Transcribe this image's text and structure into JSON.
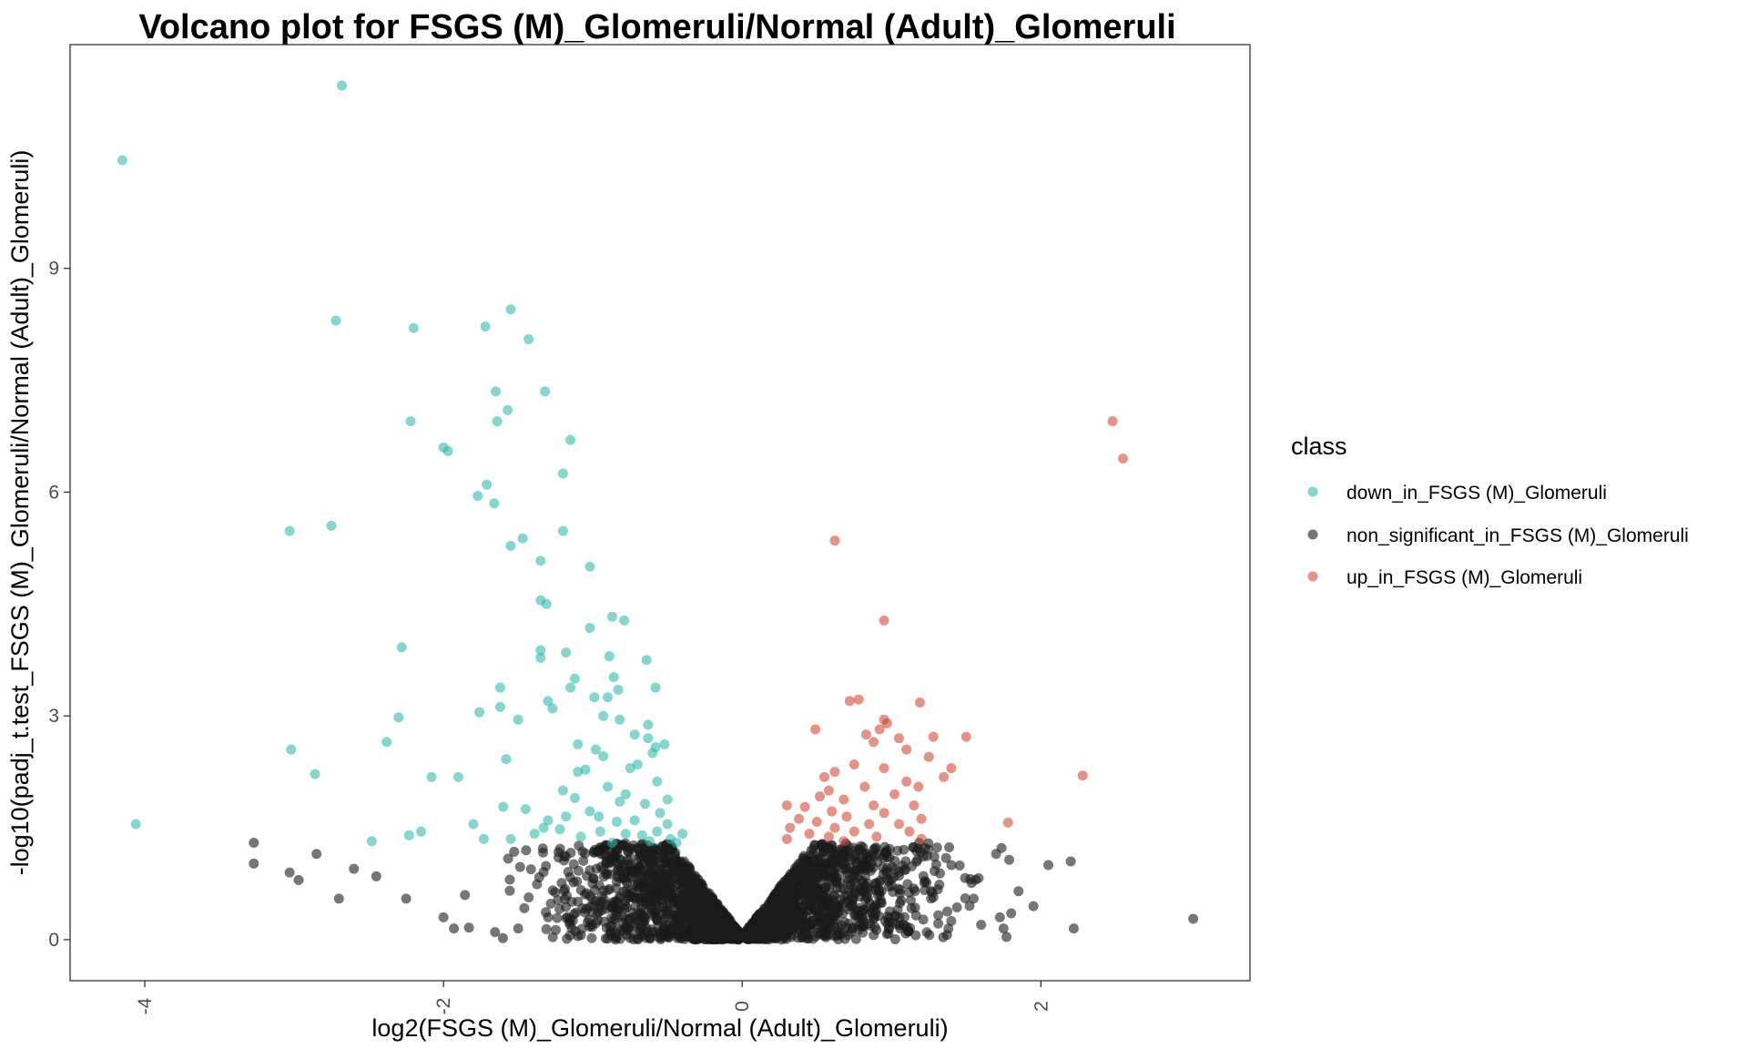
{
  "chart_data": {
    "type": "scatter",
    "title": "Volcano plot for FSGS (M)_Glomeruli/Normal (Adult)_Glomeruli",
    "xlabel": "log2(FSGS (M)_Glomeruli/Normal (Adult)_Glomeruli)",
    "ylabel": "-log10(padj_t.test_FSGS (M)_Glomeruli/Normal (Adult)_Glomeruli)",
    "xlim": [
      -4.5,
      3.4
    ],
    "ylim": [
      -0.55,
      12.0
    ],
    "x_ticks": [
      -4,
      -2,
      0,
      2
    ],
    "x_tick_labels": [
      "-4",
      "-2",
      "0",
      "2"
    ],
    "y_ticks": [
      0,
      3,
      6,
      9
    ],
    "y_tick_labels": [
      "0",
      "3",
      "6",
      "9"
    ],
    "grid": false,
    "legend": {
      "title": "class",
      "position": "right"
    },
    "series": [
      {
        "name": "down_in_FSGS (M)_Glomeruli",
        "color": "#1fb5a5",
        "points": [
          [
            -4.15,
            10.45
          ],
          [
            -2.68,
            11.45
          ],
          [
            -2.72,
            8.3
          ],
          [
            -2.2,
            8.2
          ],
          [
            -1.72,
            8.22
          ],
          [
            -1.55,
            8.45
          ],
          [
            -1.43,
            8.05
          ],
          [
            -1.65,
            7.35
          ],
          [
            -1.32,
            7.35
          ],
          [
            -1.57,
            7.1
          ],
          [
            -2.22,
            6.95
          ],
          [
            -1.64,
            6.95
          ],
          [
            -1.15,
            6.7
          ],
          [
            -2.0,
            6.6
          ],
          [
            -1.97,
            6.55
          ],
          [
            -1.2,
            6.25
          ],
          [
            -1.71,
            6.1
          ],
          [
            -1.77,
            5.95
          ],
          [
            -1.66,
            5.85
          ],
          [
            -3.03,
            5.48
          ],
          [
            -2.75,
            5.55
          ],
          [
            -1.2,
            5.48
          ],
          [
            -1.47,
            5.38
          ],
          [
            -1.55,
            5.28
          ],
          [
            -1.35,
            5.08
          ],
          [
            -1.02,
            5.0
          ],
          [
            -1.35,
            4.55
          ],
          [
            -1.31,
            4.5
          ],
          [
            -0.87,
            4.33
          ],
          [
            -0.79,
            4.28
          ],
          [
            -1.02,
            4.18
          ],
          [
            -2.28,
            3.92
          ],
          [
            -1.35,
            3.88
          ],
          [
            -1.35,
            3.78
          ],
          [
            -1.18,
            3.85
          ],
          [
            -0.89,
            3.8
          ],
          [
            -0.64,
            3.75
          ],
          [
            -1.12,
            3.5
          ],
          [
            -0.86,
            3.52
          ],
          [
            -1.15,
            3.38
          ],
          [
            -1.62,
            3.38
          ],
          [
            -0.83,
            3.35
          ],
          [
            -0.58,
            3.38
          ],
          [
            -0.99,
            3.25
          ],
          [
            -0.9,
            3.25
          ],
          [
            -1.3,
            3.2
          ],
          [
            -1.76,
            3.05
          ],
          [
            -1.62,
            3.12
          ],
          [
            -1.27,
            3.1
          ],
          [
            -2.3,
            2.98
          ],
          [
            -1.5,
            2.95
          ],
          [
            -0.82,
            2.95
          ],
          [
            -0.93,
            3.0
          ],
          [
            -0.63,
            2.88
          ],
          [
            -0.72,
            2.75
          ],
          [
            -0.63,
            2.7
          ],
          [
            -3.02,
            2.55
          ],
          [
            -2.38,
            2.65
          ],
          [
            -1.1,
            2.62
          ],
          [
            -0.98,
            2.55
          ],
          [
            -0.58,
            2.58
          ],
          [
            -0.52,
            2.62
          ],
          [
            -0.6,
            2.5
          ],
          [
            -0.93,
            2.46
          ],
          [
            -1.58,
            2.42
          ],
          [
            -2.86,
            2.22
          ],
          [
            -2.08,
            2.18
          ],
          [
            -1.9,
            2.18
          ],
          [
            -0.7,
            2.35
          ],
          [
            -0.75,
            2.3
          ],
          [
            -1.05,
            2.28
          ],
          [
            -1.1,
            2.25
          ],
          [
            -0.57,
            2.12
          ],
          [
            -1.2,
            2.0
          ],
          [
            -1.12,
            1.9
          ],
          [
            -0.82,
            1.85
          ],
          [
            -0.65,
            1.82
          ],
          [
            -0.5,
            1.88
          ],
          [
            -1.45,
            1.75
          ],
          [
            -1.6,
            1.78
          ],
          [
            -0.96,
            1.65
          ],
          [
            -0.72,
            1.6
          ],
          [
            -1.8,
            1.55
          ],
          [
            -1.3,
            1.6
          ],
          [
            -0.5,
            1.55
          ],
          [
            -1.22,
            1.48
          ],
          [
            -0.57,
            1.45
          ],
          [
            -0.4,
            1.42
          ],
          [
            -4.06,
            1.55
          ],
          [
            -2.15,
            1.45
          ],
          [
            -2.23,
            1.4
          ],
          [
            -1.73,
            1.35
          ],
          [
            -1.55,
            1.35
          ],
          [
            -1.39,
            1.42
          ],
          [
            -0.95,
            1.45
          ],
          [
            -0.78,
            1.42
          ],
          [
            -0.67,
            1.4
          ],
          [
            -2.48,
            1.32
          ],
          [
            -1.08,
            1.38
          ],
          [
            -0.62,
            1.32
          ],
          [
            -0.87,
            1.3
          ],
          [
            -0.48,
            1.35
          ],
          [
            -0.44,
            1.3
          ],
          [
            -1.33,
            1.5
          ],
          [
            -1.02,
            1.72
          ],
          [
            -0.84,
            1.58
          ],
          [
            -0.9,
            2.05
          ],
          [
            -1.18,
            1.65
          ],
          [
            -0.55,
            1.7
          ],
          [
            -0.78,
            1.95
          ]
        ]
      },
      {
        "name": "non_significant_in_FSGS (M)_Glomeruli",
        "color": "#1a1a1a",
        "points": []
      },
      {
        "name": "up_in_FSGS (M)_Glomeruli",
        "color": "#cf3a24",
        "points": [
          [
            2.48,
            6.95
          ],
          [
            2.55,
            6.45
          ],
          [
            0.62,
            5.35
          ],
          [
            0.95,
            4.28
          ],
          [
            2.28,
            2.2
          ],
          [
            1.78,
            1.57
          ],
          [
            0.72,
            3.2
          ],
          [
            0.78,
            3.22
          ],
          [
            1.19,
            3.18
          ],
          [
            0.95,
            2.95
          ],
          [
            0.97,
            2.9
          ],
          [
            0.92,
            2.82
          ],
          [
            0.49,
            2.82
          ],
          [
            1.5,
            2.72
          ],
          [
            1.28,
            2.72
          ],
          [
            0.83,
            2.75
          ],
          [
            0.88,
            2.65
          ],
          [
            1.05,
            2.7
          ],
          [
            1.1,
            2.55
          ],
          [
            1.25,
            2.45
          ],
          [
            1.4,
            2.3
          ],
          [
            1.35,
            2.18
          ],
          [
            0.75,
            2.35
          ],
          [
            0.95,
            2.3
          ],
          [
            0.62,
            2.25
          ],
          [
            0.55,
            2.18
          ],
          [
            1.1,
            2.12
          ],
          [
            1.18,
            2.05
          ],
          [
            0.58,
            2.0
          ],
          [
            0.82,
            2.05
          ],
          [
            1.02,
            1.95
          ],
          [
            0.52,
            1.92
          ],
          [
            0.68,
            1.88
          ],
          [
            0.3,
            1.8
          ],
          [
            0.42,
            1.78
          ],
          [
            0.88,
            1.8
          ],
          [
            1.15,
            1.8
          ],
          [
            0.6,
            1.72
          ],
          [
            0.95,
            1.7
          ],
          [
            0.38,
            1.62
          ],
          [
            0.7,
            1.65
          ],
          [
            1.2,
            1.62
          ],
          [
            0.5,
            1.58
          ],
          [
            0.85,
            1.55
          ],
          [
            1.05,
            1.55
          ],
          [
            0.32,
            1.5
          ],
          [
            0.62,
            1.5
          ],
          [
            0.75,
            1.45
          ],
          [
            1.12,
            1.45
          ],
          [
            0.45,
            1.42
          ],
          [
            0.58,
            1.38
          ],
          [
            0.9,
            1.38
          ],
          [
            0.3,
            1.35
          ],
          [
            0.68,
            1.32
          ],
          [
            1.2,
            1.35
          ]
        ]
      }
    ]
  }
}
